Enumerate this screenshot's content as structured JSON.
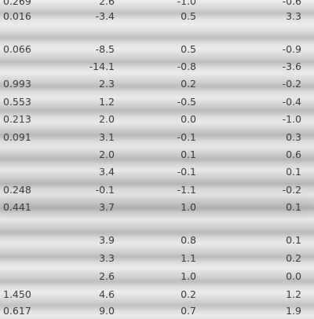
{
  "table": {
    "rows": [
      [
        "0.269",
        "2.6",
        "-1.0",
        "-0.6"
      ],
      [
        "0.016",
        "-3.4",
        "0.5",
        "3.3"
      ],
      [
        "0.066",
        "-8.5",
        "0.5",
        "-0.9"
      ],
      [
        "",
        "-14.1",
        "-0.8",
        "-3.6"
      ],
      [
        "0.993",
        "2.3",
        "0.2",
        "-0.2"
      ],
      [
        "0.553",
        "1.2",
        "-0.5",
        "-0.4"
      ],
      [
        "0.213",
        "2.0",
        "0.0",
        "-1.0"
      ],
      [
        "0.091",
        "3.1",
        "-0.1",
        "0.3"
      ],
      [
        "",
        "2.0",
        "0.1",
        "0.6"
      ],
      [
        "",
        "3.4",
        "-0.1",
        "0.1"
      ],
      [
        "0.248",
        "-0.1",
        "-1.1",
        "-0.2"
      ],
      [
        "0.441",
        "3.7",
        "1.0",
        "0.1"
      ],
      [
        "",
        "3.9",
        "0.8",
        "0.1"
      ],
      [
        "",
        "3.3",
        "1.1",
        "0.2"
      ],
      [
        "",
        "2.6",
        "1.0",
        "0.0"
      ],
      [
        "1.450",
        "4.6",
        "0.2",
        "1.2"
      ],
      [
        "0.617",
        "9.0",
        "0.7",
        "1.9"
      ]
    ]
  }
}
